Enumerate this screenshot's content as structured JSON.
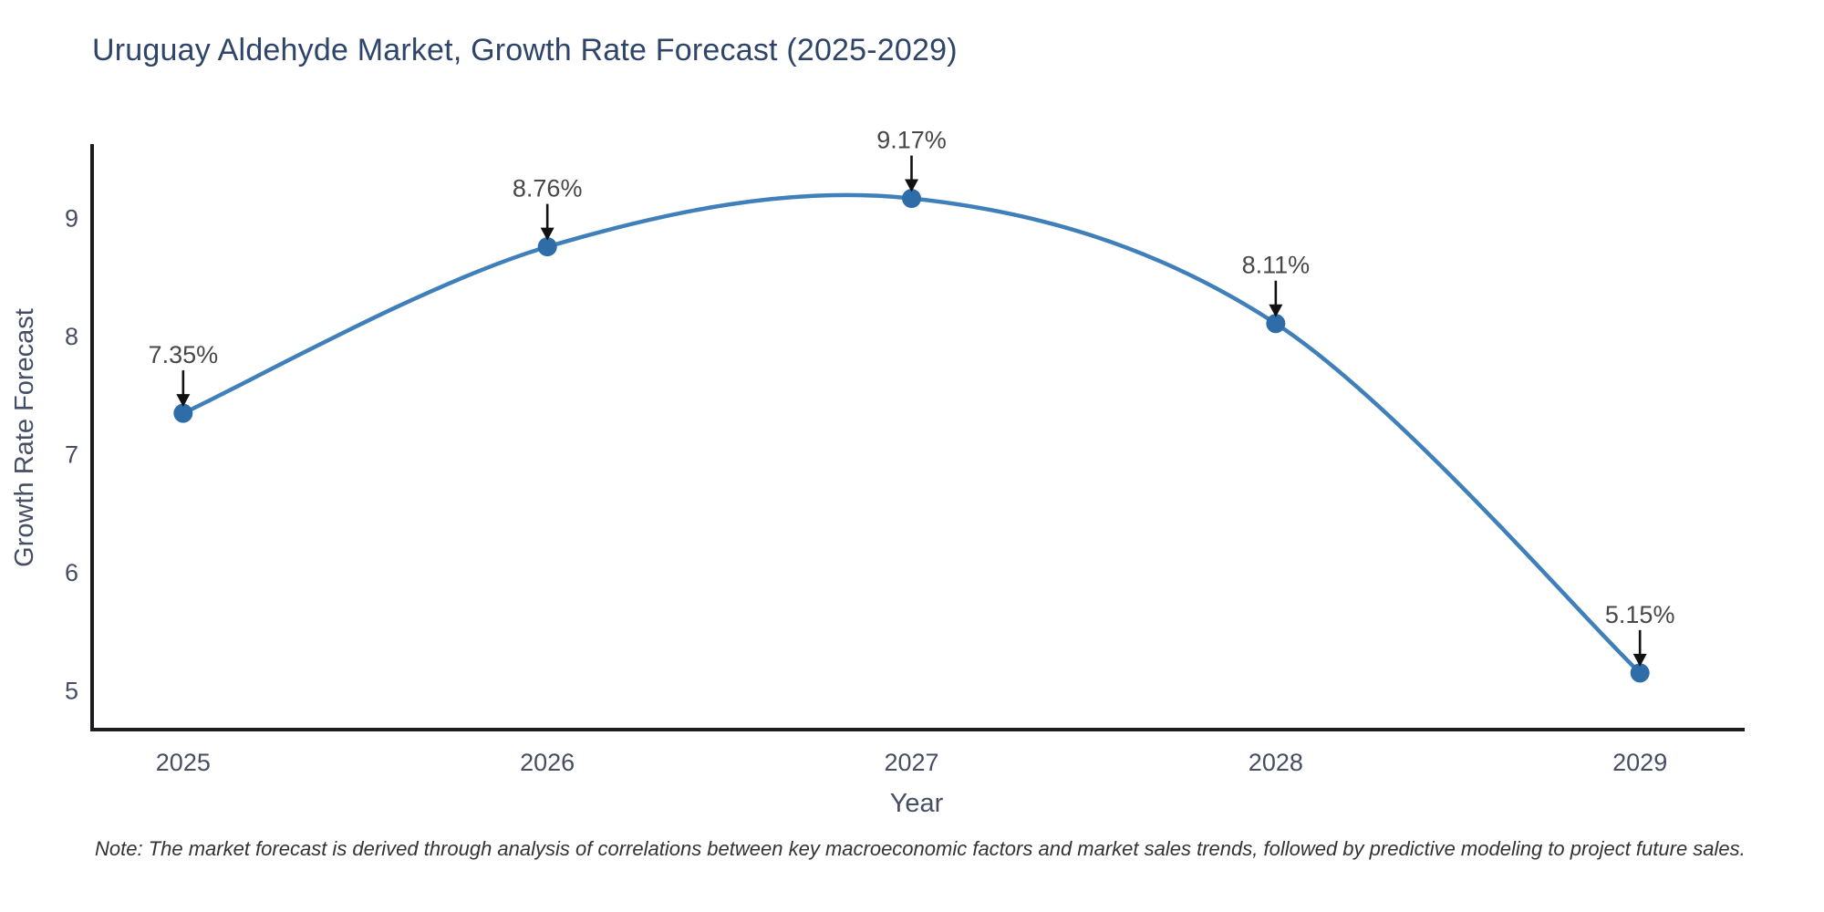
{
  "header": {
    "title": "Uruguay Aldehyde Market, Growth Rate Forecast (2025-2029)",
    "title_color": "#2e4569"
  },
  "chart_data": {
    "type": "line",
    "title": "Uruguay Aldehyde Market, Growth Rate Forecast (2025-2029)",
    "x": [
      2025,
      2026,
      2027,
      2028,
      2029
    ],
    "series": [
      {
        "name": "Growth Rate Forecast",
        "values": [
          7.35,
          8.76,
          9.17,
          8.11,
          5.15
        ]
      }
    ],
    "point_labels": [
      "7.35%",
      "8.76%",
      "9.17%",
      "8.11%",
      "5.15%"
    ],
    "xlabel": "Year",
    "ylabel": "Growth Rate Forecast",
    "x_ticks": [
      2025,
      2026,
      2027,
      2028,
      2029
    ],
    "y_ticks": [
      5,
      6,
      7,
      8,
      9
    ],
    "xlim": [
      2024.75,
      2029.28
    ],
    "ylim": [
      4.67,
      9.63
    ],
    "grid": false,
    "legend": "none",
    "line_shape": "spline",
    "colors": {
      "line": "#3f7fba",
      "marker": "#2f6da8",
      "axis": "#1c1c20",
      "tick_label": "#454e63",
      "annotation_text": "#474747",
      "annotation_arrow": "#111111"
    }
  },
  "footer": {
    "note": "Note: The market forecast is derived through analysis of correlations between key macroeconomic factors and market sales trends, followed by predictive modeling to project future sales."
  }
}
